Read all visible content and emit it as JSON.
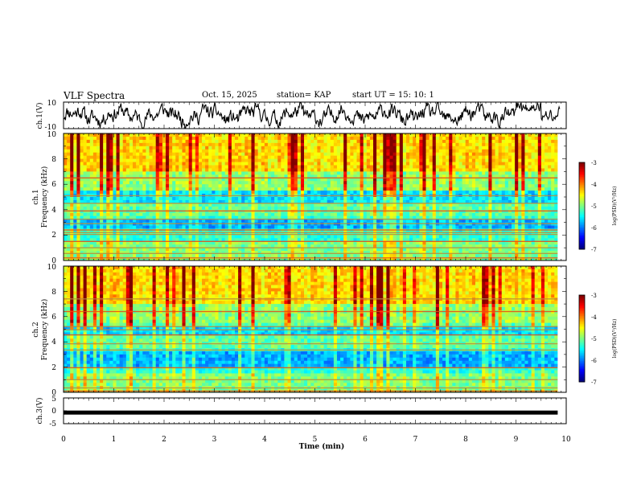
{
  "header": {
    "title": "VLF Spectra",
    "date": "Oct. 15, 2025",
    "station": "station= KAP",
    "start_ut": "start  UT  =   15: 10: 1"
  },
  "chart_data": [
    {
      "id": "ch1-waveform",
      "type": "line",
      "ylabel": "ch.1(V)",
      "ylim": [
        -10,
        10
      ],
      "yticks": [
        "10",
        "-10"
      ],
      "xlim": [
        0,
        10
      ],
      "series_seed": 11
    },
    {
      "id": "ch1-spectrogram",
      "type": "heatmap",
      "ylabel_top": "ch.1",
      "ylabel": "Frequency (kHz)",
      "ylim": [
        0,
        10
      ],
      "yticks": [
        "0",
        "2",
        "4",
        "6",
        "8",
        "10"
      ],
      "xlim": [
        0,
        10
      ],
      "data_end_min": 9.83,
      "colorbar": {
        "label": "log(PSD)(V²/Hz)",
        "range": [
          -7,
          -3
        ],
        "ticks": [
          "-3",
          "-4",
          "-5",
          "-6",
          "-7"
        ]
      },
      "lines_khz": [
        0.2,
        0.55,
        1.0,
        1.5,
        2.05,
        2.2,
        2.4,
        2.9,
        3.25,
        3.9,
        4.5,
        5.1,
        6.5
      ],
      "quiet_bands_khz": [
        [
          2.4,
          3.3
        ],
        [
          4.4,
          5.6
        ]
      ],
      "seed": 7
    },
    {
      "id": "ch2-spectrogram",
      "type": "heatmap",
      "ylabel_top": "ch.2",
      "ylabel": "Frequency (kHz)",
      "ylim": [
        0,
        10
      ],
      "yticks": [
        "0",
        "2",
        "4",
        "6",
        "8",
        "10"
      ],
      "xlim": [
        0,
        10
      ],
      "data_end_min": 9.83,
      "colorbar": {
        "label": "log(PSD)(V²/Hz)",
        "range": [
          -7,
          -3
        ],
        "ticks": [
          "-3",
          "-4",
          "-5",
          "-6",
          "-7"
        ]
      },
      "lines_khz": [
        0.1,
        0.35,
        1.0,
        1.95,
        3.35,
        3.85,
        4.55,
        4.95,
        5.2,
        6.4,
        7.4
      ],
      "quiet_bands_khz": [
        [
          1.9,
          3.2
        ],
        [
          4.6,
          5.3
        ]
      ],
      "seed": 19
    },
    {
      "id": "ch3-waveform",
      "type": "line",
      "ylabel": "ch.3(V)",
      "ylim": [
        -5,
        5
      ],
      "yticks": [
        "5",
        "0",
        "-5"
      ],
      "level_v": -0.7,
      "xlim": [
        0,
        10
      ],
      "xlabel": "Time (min)",
      "xticks": [
        "0",
        "1",
        "2",
        "3",
        "4",
        "5",
        "6",
        "7",
        "8",
        "9",
        "10"
      ]
    }
  ]
}
